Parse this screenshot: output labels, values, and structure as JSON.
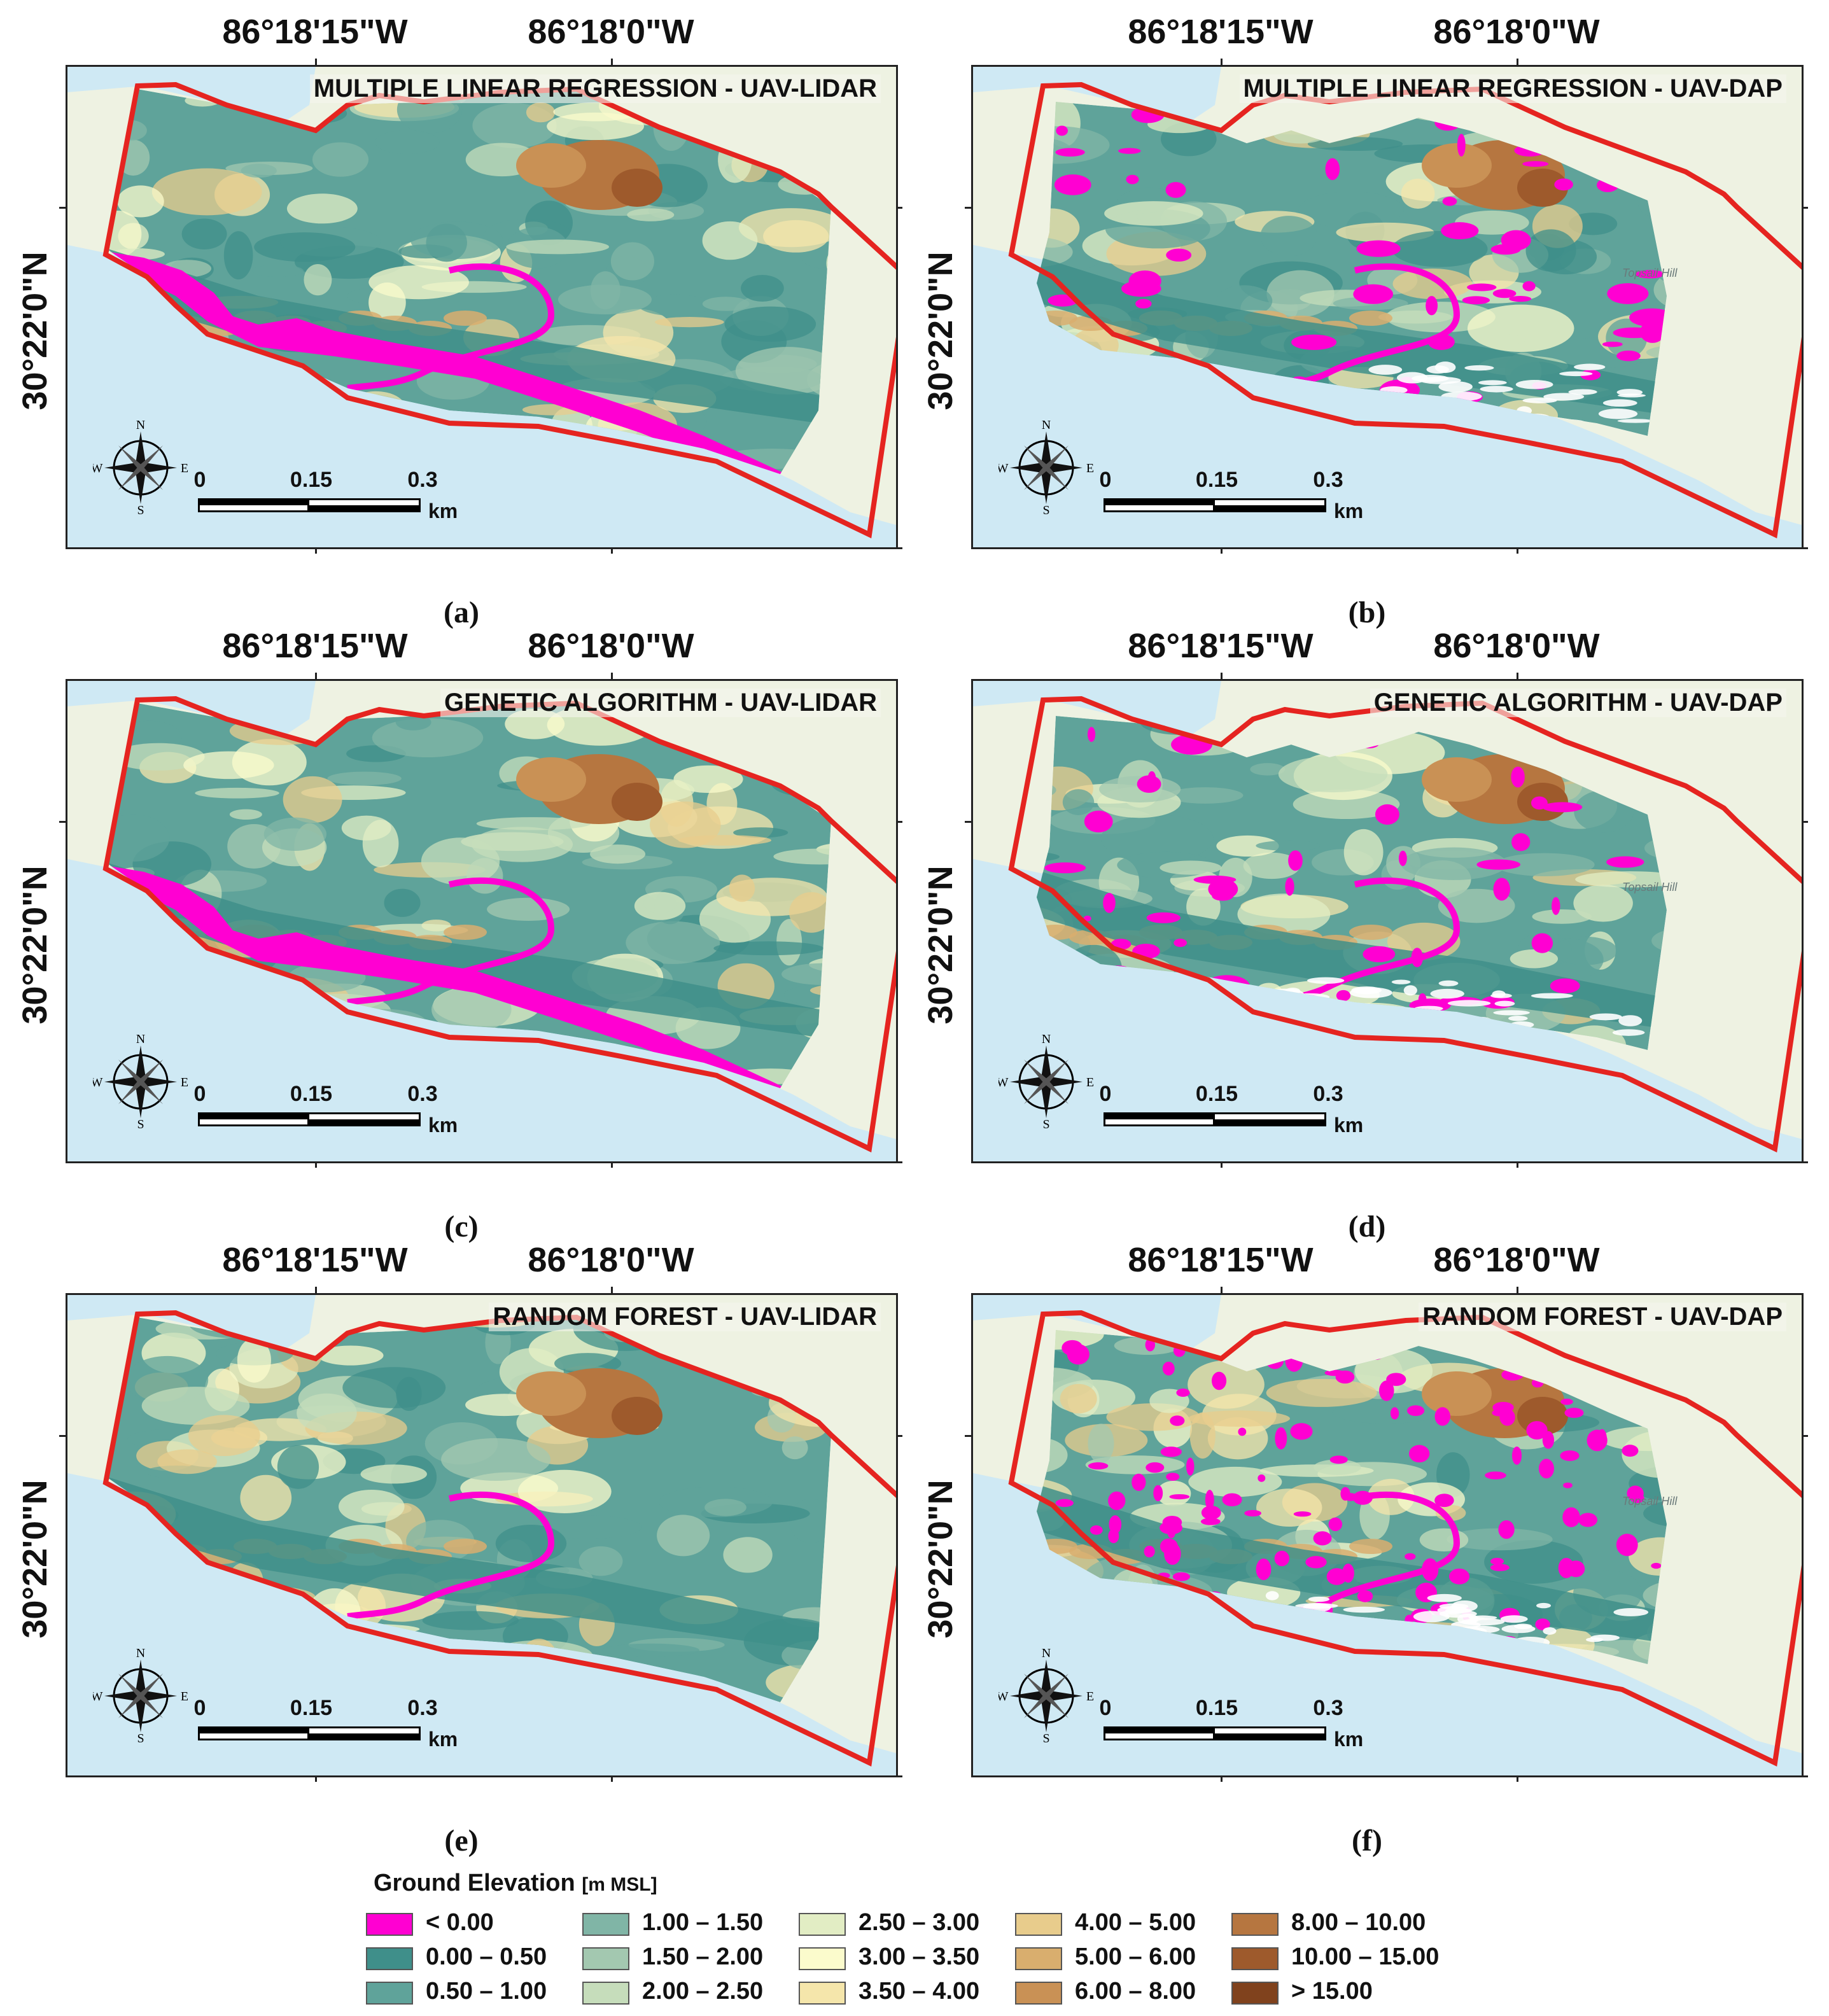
{
  "panels": [
    {
      "caption": "(a)",
      "title": "MULTIPLE LINEAR REGRESSION - UAV-LIDAR",
      "lon1": "86°18'15\"W",
      "lon2": "86°18'0\"W",
      "lat": "30°22'0\"N",
      "source": "lidar",
      "method": "mlr"
    },
    {
      "caption": "(b)",
      "title": "MULTIPLE  LINEAR REGRESSION - UAV-DAP",
      "lon1": "86°18'15\"W",
      "lon2": "86°18'0\"W",
      "lat": "30°22'0\"N",
      "source": "dap",
      "method": "mlr"
    },
    {
      "caption": "(c)",
      "title": "GENETIC ALGORITHM - UAV-LIDAR",
      "lon1": "86°18'15\"W",
      "lon2": "86°18'0\"W",
      "lat": "30°22'0\"N",
      "source": "lidar",
      "method": "ga"
    },
    {
      "caption": "(d)",
      "title": "GENETIC ALGORITHM - UAV-DAP",
      "lon1": "86°18'15\"W",
      "lon2": "86°18'0\"W",
      "lat": "30°22'0\"N",
      "source": "dap",
      "method": "ga"
    },
    {
      "caption": "(e)",
      "title": "RANDOM FOREST - UAV-LIDAR",
      "lon1": "86°18'15\"W",
      "lon2": "86°18'0\"W",
      "lat": "30°22'0\"N",
      "source": "lidar",
      "method": "rf"
    },
    {
      "caption": "(f)",
      "title": "RANDOM FOREST - UAV-DAP",
      "lon1": "86°18'15\"W",
      "lon2": "86°18'0\"W",
      "lat": "30°22'0\"N",
      "source": "dap",
      "method": "rf"
    }
  ],
  "scalebar": {
    "labels": [
      "0",
      "0.15",
      "0.3"
    ],
    "unit": "km"
  },
  "compass": {
    "n": "N",
    "s": "S",
    "e": "E",
    "w": "W"
  },
  "basemap_label": "Topsail Hill",
  "legend": {
    "title": "Ground Elevation",
    "unit": "[m MSL]",
    "classes": [
      {
        "label": "< 0.00",
        "color": "#ff00d2"
      },
      {
        "label": "0.00 – 0.50",
        "color": "#3f8f8a"
      },
      {
        "label": "0.50 – 1.00",
        "color": "#5fa39a"
      },
      {
        "label": "1.00 – 1.50",
        "color": "#80b5a6"
      },
      {
        "label": "1.50 – 2.00",
        "color": "#a3c8b0"
      },
      {
        "label": "2.00 – 2.50",
        "color": "#c6ddbb"
      },
      {
        "label": "2.50 – 3.00",
        "color": "#e2edc4"
      },
      {
        "label": "3.00 – 3.50",
        "color": "#fbfbcc"
      },
      {
        "label": "3.50 – 4.00",
        "color": "#f5e6ab"
      },
      {
        "label": "4.00 – 5.00",
        "color": "#e8cc8c"
      },
      {
        "label": "5.00 – 6.00",
        "color": "#d9ae6e"
      },
      {
        "label": "6.00 – 8.00",
        "color": "#c99155"
      },
      {
        "label": "8.00 – 10.00",
        "color": "#b67640"
      },
      {
        "label": "10.00 – 15.00",
        "color": "#9e5a2c"
      },
      {
        "label": "> 15.00",
        "color": "#80421d"
      }
    ]
  },
  "colors": {
    "water": "#cfe9f4",
    "land": "#eef2e2",
    "boundary": "#e52420"
  }
}
